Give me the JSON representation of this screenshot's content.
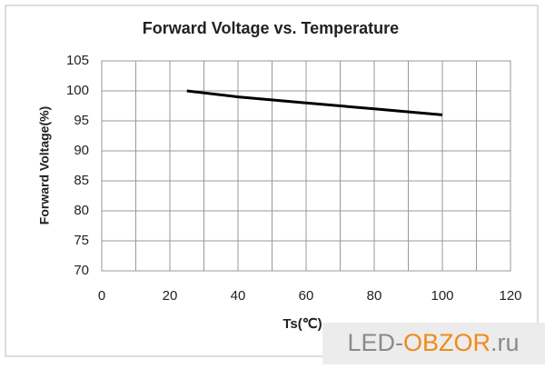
{
  "chart_data": {
    "type": "line",
    "title": "Forward Voltage vs. Temperature",
    "x_label": "Ts(℃)",
    "y_label": "Forward Voltage(%)",
    "x": [
      25,
      40,
      60,
      80,
      100
    ],
    "series": [
      {
        "name": "Forward Voltage",
        "color": "#000000",
        "values": [
          100,
          99,
          98,
          97,
          96
        ]
      }
    ],
    "xlim": [
      0,
      120
    ],
    "xticks": [
      0,
      20,
      40,
      60,
      80,
      100,
      120
    ],
    "ylim": [
      70,
      105
    ],
    "yticks": [
      70,
      75,
      80,
      85,
      90,
      95,
      100,
      105
    ],
    "grid": true
  },
  "watermark": [
    "LED-",
    "OBZOR",
    ".ru"
  ]
}
